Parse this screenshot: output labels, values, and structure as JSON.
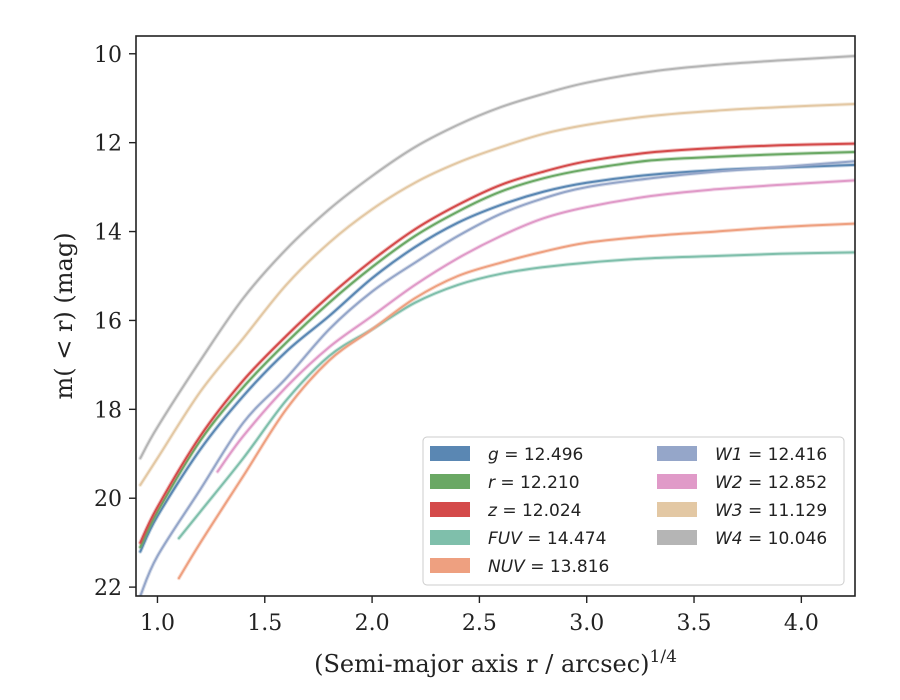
{
  "chart_data": {
    "type": "line",
    "xlabel": "(Semi-major axis r / arcsec)",
    "xlabel_sup": "1/4",
    "ylabel": "m( < r) (mag)",
    "xlim": [
      0.9,
      4.25
    ],
    "ylim": [
      22.2,
      9.6
    ],
    "y_inverted": true,
    "x_ticks": [
      1.0,
      1.5,
      2.0,
      2.5,
      3.0,
      3.5,
      4.0
    ],
    "x_tick_labels": [
      "1.0",
      "1.5",
      "2.0",
      "2.5",
      "3.0",
      "3.5",
      "4.0"
    ],
    "y_ticks": [
      10,
      12,
      14,
      16,
      18,
      20,
      22
    ],
    "y_tick_labels": [
      "10",
      "12",
      "14",
      "16",
      "18",
      "20",
      "22"
    ],
    "grid": false,
    "legend_position": "bottom-right",
    "series": [
      {
        "name": "g",
        "label": "12.496",
        "color": "#5a87b3",
        "x": [
          0.92,
          1.0,
          1.2,
          1.4,
          1.6,
          1.8,
          2.0,
          2.2,
          2.4,
          2.6,
          2.8,
          3.0,
          3.3,
          3.6,
          3.9,
          4.25
        ],
        "y": [
          21.2,
          20.4,
          18.9,
          17.7,
          16.7,
          15.9,
          15.05,
          14.35,
          13.8,
          13.4,
          13.1,
          12.9,
          12.72,
          12.62,
          12.56,
          12.5
        ]
      },
      {
        "name": "r",
        "label": "12.210",
        "color": "#6aa864",
        "x": [
          0.92,
          1.0,
          1.2,
          1.4,
          1.6,
          1.8,
          2.0,
          2.2,
          2.4,
          2.6,
          2.8,
          3.0,
          3.3,
          3.6,
          3.9,
          4.25
        ],
        "y": [
          21.1,
          20.3,
          18.7,
          17.5,
          16.5,
          15.6,
          14.8,
          14.1,
          13.55,
          13.1,
          12.8,
          12.6,
          12.4,
          12.32,
          12.26,
          12.21
        ]
      },
      {
        "name": "z",
        "label": "12.024",
        "color": "#d44a4a",
        "x": [
          0.92,
          1.0,
          1.2,
          1.4,
          1.6,
          1.8,
          2.0,
          2.2,
          2.4,
          2.6,
          2.8,
          3.0,
          3.3,
          3.6,
          3.9,
          4.25
        ],
        "y": [
          21.0,
          20.2,
          18.6,
          17.35,
          16.35,
          15.45,
          14.65,
          13.95,
          13.4,
          12.95,
          12.65,
          12.42,
          12.22,
          12.12,
          12.06,
          12.02
        ]
      },
      {
        "name": "FUV",
        "label": "14.474",
        "color": "#7fbfab",
        "x": [
          1.1,
          1.2,
          1.4,
          1.6,
          1.8,
          2.0,
          2.2,
          2.4,
          2.6,
          2.8,
          3.0,
          3.3,
          3.6,
          3.9,
          4.25
        ],
        "y": [
          20.9,
          20.3,
          19.1,
          17.8,
          16.8,
          16.2,
          15.6,
          15.2,
          14.95,
          14.8,
          14.7,
          14.6,
          14.55,
          14.5,
          14.47
        ]
      },
      {
        "name": "NUV",
        "label": "13.816",
        "color": "#eea080",
        "x": [
          1.1,
          1.2,
          1.4,
          1.6,
          1.8,
          2.0,
          2.2,
          2.4,
          2.6,
          2.8,
          3.0,
          3.3,
          3.6,
          3.9,
          4.25
        ],
        "y": [
          21.8,
          21.0,
          19.5,
          18.0,
          16.9,
          16.2,
          15.5,
          15.0,
          14.7,
          14.45,
          14.25,
          14.1,
          14.0,
          13.9,
          13.82
        ]
      },
      {
        "name": "W1",
        "label": "12.416",
        "color": "#95a6c9",
        "x": [
          0.92,
          1.0,
          1.2,
          1.4,
          1.6,
          1.8,
          2.0,
          2.2,
          2.4,
          2.6,
          2.8,
          3.0,
          3.3,
          3.6,
          3.9,
          4.25
        ],
        "y": [
          22.2,
          21.3,
          19.8,
          18.3,
          17.3,
          16.2,
          15.35,
          14.7,
          14.1,
          13.6,
          13.25,
          13.0,
          12.8,
          12.65,
          12.55,
          12.42
        ]
      },
      {
        "name": "W2",
        "label": "12.852",
        "color": "#e09ac8",
        "x": [
          1.28,
          1.4,
          1.6,
          1.8,
          2.0,
          2.2,
          2.4,
          2.6,
          2.8,
          3.0,
          3.3,
          3.6,
          3.9,
          4.25
        ],
        "y": [
          19.4,
          18.6,
          17.5,
          16.6,
          15.9,
          15.2,
          14.6,
          14.1,
          13.7,
          13.45,
          13.2,
          13.05,
          12.95,
          12.85
        ]
      },
      {
        "name": "W3",
        "label": "11.129",
        "color": "#e3c8a4",
        "x": [
          0.92,
          1.0,
          1.2,
          1.4,
          1.6,
          1.8,
          2.0,
          2.2,
          2.4,
          2.6,
          2.8,
          3.0,
          3.3,
          3.6,
          3.9,
          4.25
        ],
        "y": [
          19.7,
          19.1,
          17.6,
          16.4,
          15.2,
          14.25,
          13.5,
          12.9,
          12.45,
          12.1,
          11.8,
          11.6,
          11.4,
          11.28,
          11.2,
          11.13
        ]
      },
      {
        "name": "W4",
        "label": "10.046",
        "color": "#b5b5b5",
        "x": [
          0.92,
          1.0,
          1.2,
          1.4,
          1.6,
          1.8,
          2.0,
          2.2,
          2.4,
          2.6,
          2.8,
          3.0,
          3.3,
          3.6,
          3.9,
          4.25
        ],
        "y": [
          19.1,
          18.4,
          16.9,
          15.5,
          14.4,
          13.5,
          12.75,
          12.1,
          11.6,
          11.2,
          10.9,
          10.65,
          10.4,
          10.25,
          10.15,
          10.05
        ]
      }
    ],
    "legend_columns": [
      [
        "g",
        "r",
        "z",
        "FUV",
        "NUV"
      ],
      [
        "W1",
        "W2",
        "W3",
        "W4"
      ]
    ]
  }
}
